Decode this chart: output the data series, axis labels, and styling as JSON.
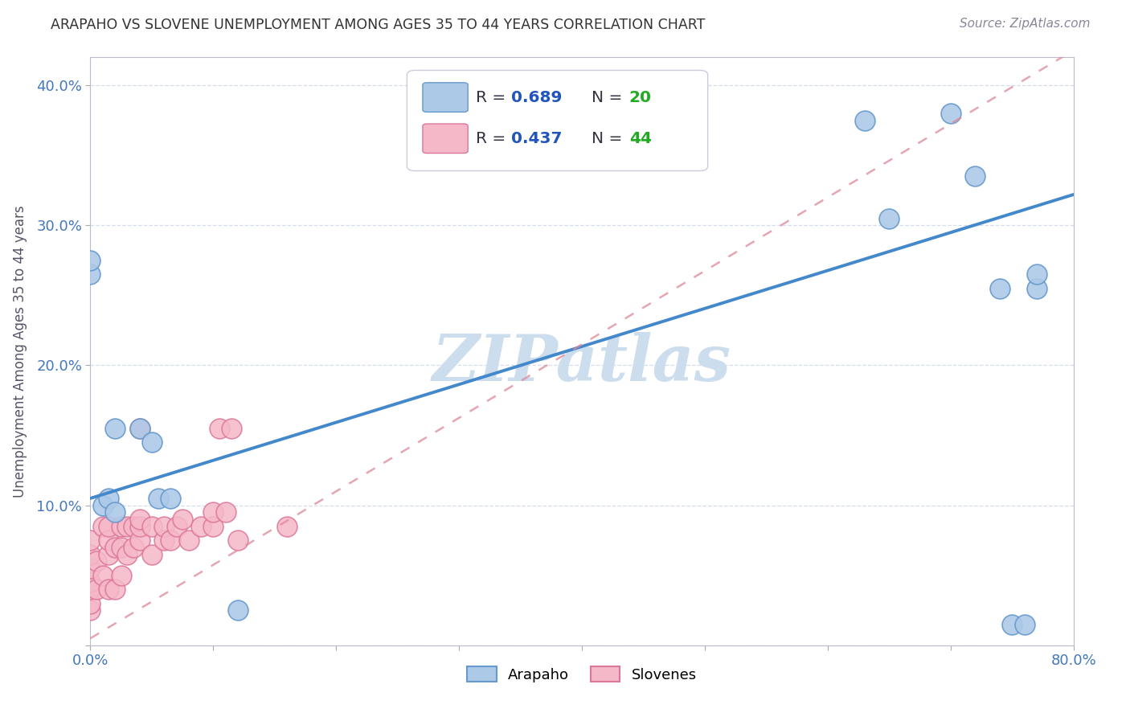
{
  "title": "ARAPAHO VS SLOVENE UNEMPLOYMENT AMONG AGES 35 TO 44 YEARS CORRELATION CHART",
  "source": "Source: ZipAtlas.com",
  "ylabel": "Unemployment Among Ages 35 to 44 years",
  "xlim": [
    0.0,
    0.8
  ],
  "ylim": [
    0.0,
    0.42
  ],
  "xticks": [
    0.0,
    0.1,
    0.2,
    0.3,
    0.4,
    0.5,
    0.6,
    0.7,
    0.8
  ],
  "xticklabels": [
    "0.0%",
    "",
    "",
    "",
    "",
    "",
    "",
    "",
    "80.0%"
  ],
  "yticks": [
    0.0,
    0.1,
    0.2,
    0.3,
    0.4
  ],
  "yticklabels": [
    "",
    "10.0%",
    "20.0%",
    "30.0%",
    "40.0%"
  ],
  "arapaho_color": "#adc9e8",
  "arapaho_edge_color": "#6699cc",
  "slovene_color": "#f5b8c8",
  "slovene_edge_color": "#dd7799",
  "arapaho_line_color": "#4488cc",
  "slovene_line_color": "#dd8899",
  "arapaho_R": 0.689,
  "arapaho_N": 20,
  "slovene_R": 0.437,
  "slovene_N": 44,
  "legend_R_color": "#2255bb",
  "legend_N_color": "#22aa22",
  "watermark": "ZIPatlas",
  "watermark_color": "#ccdded",
  "arapaho_line_x0": 0.0,
  "arapaho_line_y0": 0.105,
  "arapaho_line_x1": 0.8,
  "arapaho_line_y1": 0.322,
  "slovene_line_x0": 0.0,
  "slovene_line_y0": 0.005,
  "slovene_line_x1": 0.8,
  "slovene_line_y1": 0.425,
  "arapaho_x": [
    0.0,
    0.0,
    0.01,
    0.015,
    0.02,
    0.02,
    0.04,
    0.05,
    0.055,
    0.065,
    0.12,
    0.63,
    0.65,
    0.7,
    0.72,
    0.74,
    0.75,
    0.76,
    0.77,
    0.77
  ],
  "arapaho_y": [
    0.265,
    0.275,
    0.1,
    0.105,
    0.095,
    0.155,
    0.155,
    0.145,
    0.105,
    0.105,
    0.025,
    0.375,
    0.305,
    0.38,
    0.335,
    0.255,
    0.015,
    0.015,
    0.255,
    0.265
  ],
  "slovene_x": [
    0.0,
    0.0,
    0.0,
    0.0,
    0.0,
    0.0,
    0.0,
    0.005,
    0.005,
    0.01,
    0.01,
    0.015,
    0.015,
    0.015,
    0.015,
    0.02,
    0.02,
    0.025,
    0.025,
    0.025,
    0.03,
    0.03,
    0.035,
    0.035,
    0.04,
    0.04,
    0.04,
    0.04,
    0.05,
    0.05,
    0.06,
    0.06,
    0.065,
    0.07,
    0.075,
    0.08,
    0.09,
    0.1,
    0.1,
    0.105,
    0.11,
    0.115,
    0.12,
    0.16
  ],
  "slovene_y": [
    0.025,
    0.03,
    0.04,
    0.045,
    0.055,
    0.065,
    0.075,
    0.04,
    0.06,
    0.05,
    0.085,
    0.04,
    0.065,
    0.075,
    0.085,
    0.04,
    0.07,
    0.05,
    0.07,
    0.085,
    0.065,
    0.085,
    0.07,
    0.085,
    0.075,
    0.085,
    0.09,
    0.155,
    0.065,
    0.085,
    0.075,
    0.085,
    0.075,
    0.085,
    0.09,
    0.075,
    0.085,
    0.085,
    0.095,
    0.155,
    0.095,
    0.155,
    0.075,
    0.085
  ],
  "background_color": "#ffffff",
  "grid_color": "#d5dded",
  "title_color": "#333333",
  "tick_color": "#4477bb"
}
